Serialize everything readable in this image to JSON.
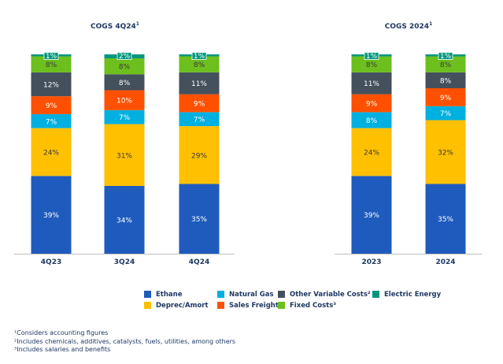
{
  "chart_data": [
    {
      "type": "stacked-bar",
      "title": "COGS 4Q24",
      "title_sup": "1",
      "categories": [
        "4Q23",
        "3Q24",
        "4Q24"
      ],
      "series": [
        {
          "name": "Ethane",
          "values": [
            39,
            34,
            35
          ],
          "color": "#1f5bbd"
        },
        {
          "name": "Deprec/Amort",
          "values": [
            24,
            31,
            29
          ],
          "color": "#ffc000"
        },
        {
          "name": "Natural Gas",
          "values": [
            7,
            7,
            7
          ],
          "color": "#00b0e0"
        },
        {
          "name": "Sales Freight",
          "values": [
            9,
            10,
            9
          ],
          "color": "#ff5000"
        },
        {
          "name": "Other Variable Costs",
          "values": [
            12,
            8,
            11
          ],
          "color": "#44505c"
        },
        {
          "name": "Fixed Costs",
          "values": [
            8,
            8,
            8
          ],
          "color": "#6cbf1c"
        },
        {
          "name": "Electric Energy",
          "values": [
            1,
            2,
            1
          ],
          "color": "#00967e"
        }
      ],
      "ylim": [
        0,
        100
      ]
    },
    {
      "type": "stacked-bar",
      "title": "COGS 2024",
      "title_sup": "1",
      "categories": [
        "2023",
        "2024"
      ],
      "series": [
        {
          "name": "Ethane",
          "values": [
            39,
            35
          ],
          "color": "#1f5bbd"
        },
        {
          "name": "Deprec/Amort",
          "values": [
            24,
            32
          ],
          "color": "#ffc000"
        },
        {
          "name": "Natural Gas",
          "values": [
            8,
            7
          ],
          "color": "#00b0e0"
        },
        {
          "name": "Sales Freight",
          "values": [
            9,
            9
          ],
          "color": "#ff5000"
        },
        {
          "name": "Other Variable Costs",
          "values": [
            11,
            8
          ],
          "color": "#44505c"
        },
        {
          "name": "Fixed Costs",
          "values": [
            8,
            8
          ],
          "color": "#6cbf1c"
        },
        {
          "name": "Electric Energy",
          "values": [
            1,
            1
          ],
          "color": "#00967e"
        }
      ],
      "ylim": [
        0,
        100
      ]
    }
  ],
  "legend": [
    {
      "label": "Ethane",
      "color": "#1f5bbd"
    },
    {
      "label": "Natural Gas",
      "color": "#00b0e0"
    },
    {
      "label": "Other Variable Costs²",
      "color": "#44505c"
    },
    {
      "label": "Electric Energy",
      "color": "#00967e"
    },
    {
      "label": "Deprec/Amort",
      "color": "#ffc000"
    },
    {
      "label": "Sales Freight",
      "color": "#ff5000"
    },
    {
      "label": "Fixed Costs³",
      "color": "#6cbf1c"
    }
  ],
  "footnotes": [
    "¹Considers accounting figures",
    "²Includes chemicals, additives, catalysts, fuels, utilities, among others",
    "³Includes salaries and benefits"
  ]
}
